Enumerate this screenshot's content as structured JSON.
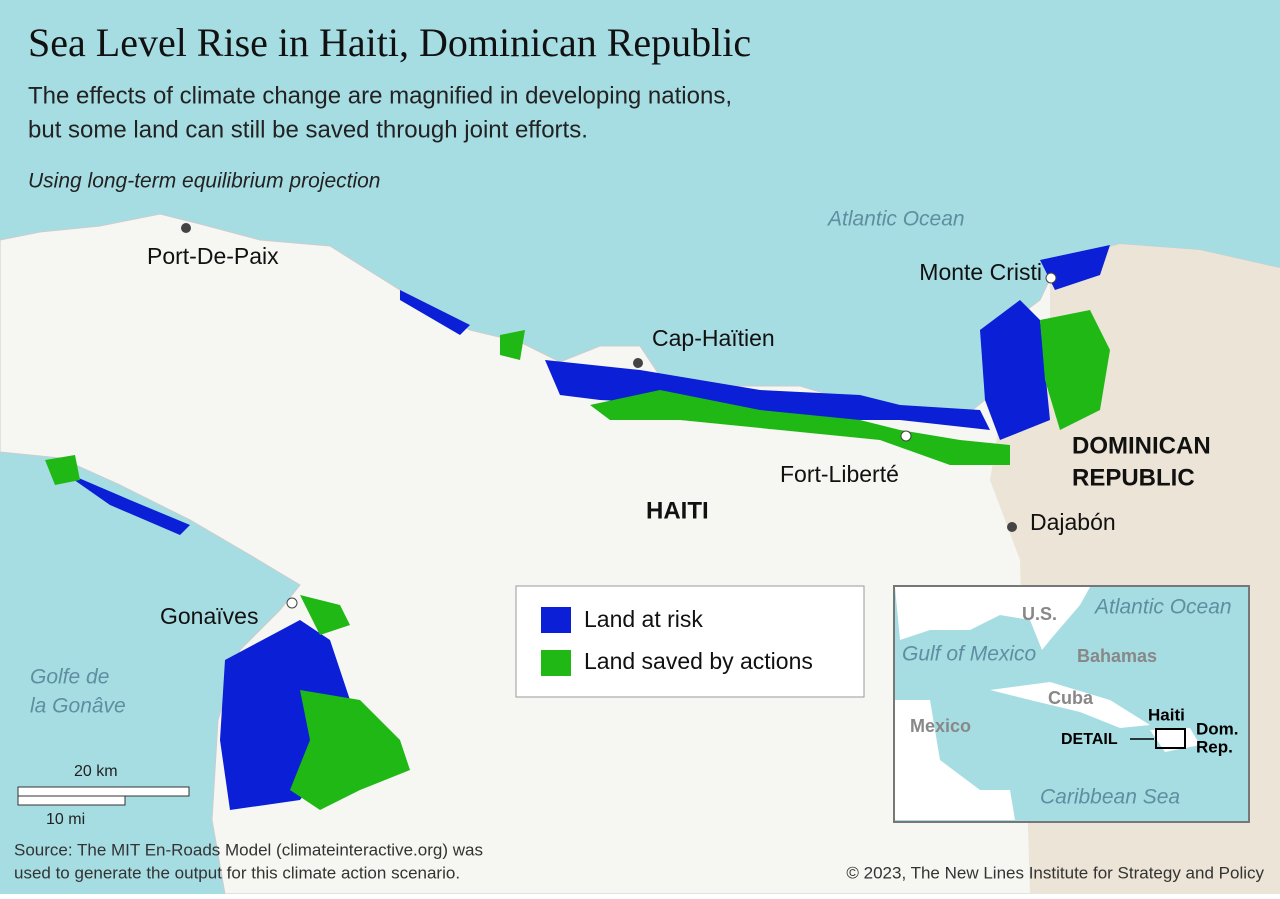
{
  "header": {
    "title": "Sea Level Rise in Haiti, Dominican Republic",
    "subtitle_lines": [
      "The effects of climate change are magnified in developing nations,",
      "but some land can still be saved through joint efforts."
    ],
    "note": "Using long-term equilibrium projection"
  },
  "map": {
    "water_labels": [
      "Atlantic Ocean",
      "Golfe de",
      "la Gonâve"
    ],
    "places": [
      "Port-De-Paix",
      "Cap-Haïtien",
      "Monte Cristi",
      "Fort-Liberté",
      "Dajabón",
      "Gonaïves"
    ],
    "countries": [
      "HAITI",
      "DOMINICAN",
      "REPUBLIC"
    ]
  },
  "legend": {
    "items": [
      {
        "label": "Land at risk",
        "color": "#0a1fd6"
      },
      {
        "label": "Land saved by actions",
        "color": "#1fb814"
      }
    ]
  },
  "scale_bar": {
    "km": "20 km",
    "mi": "10 mi"
  },
  "inset": {
    "labels": [
      "U.S.",
      "Atlantic Ocean",
      "Gulf of Mexico",
      "Bahamas",
      "Cuba",
      "Mexico",
      "Haiti",
      "Dom.",
      "Rep.",
      "DETAIL",
      "Caribbean Sea"
    ]
  },
  "footer": {
    "source_lines": [
      "Source: The MIT En-Roads Model (climateinteractive.org) was",
      "used to generate the output for this climate action scenario."
    ],
    "credit": "© 2023, The New Lines Institute for Strategy and Policy"
  }
}
